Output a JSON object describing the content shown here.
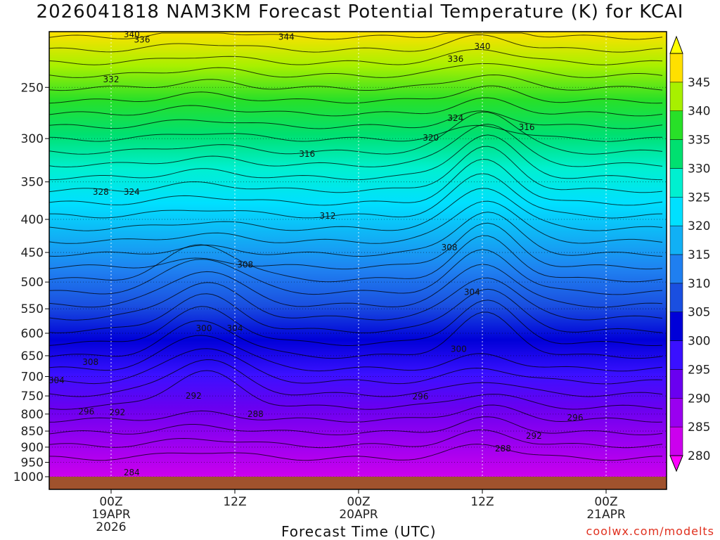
{
  "title": "2026041818 NAM3KM Forecast Potential Temperature (K) for KCAI",
  "credit": "coolwx.com/modelts",
  "chart_data": {
    "type": "heatmap",
    "title": "2026041818 NAM3KM Forecast Potential Temperature (K) for KCAI",
    "xlabel": "Forecast Time (UTC)",
    "ylabel": "",
    "y_scale": "log-pressure",
    "ylim": [
      1000,
      200
    ],
    "y_ticks": [
      250,
      300,
      350,
      400,
      450,
      500,
      550,
      600,
      650,
      700,
      750,
      800,
      850,
      900,
      950,
      1000
    ],
    "x_ticks": [
      {
        "label": "00Z",
        "sub1": "19APR",
        "sub2": "2026"
      },
      {
        "label": "12Z",
        "sub1": "",
        "sub2": ""
      },
      {
        "label": "00Z",
        "sub1": "20APR",
        "sub2": ""
      },
      {
        "label": "12Z",
        "sub1": "",
        "sub2": ""
      },
      {
        "label": "00Z",
        "sub1": "21APR",
        "sub2": ""
      }
    ],
    "colorbar": {
      "levels": [
        280,
        285,
        290,
        295,
        300,
        305,
        310,
        315,
        320,
        325,
        330,
        335,
        340,
        345
      ],
      "colors": [
        "#cc00ee",
        "#9a00f0",
        "#6a00f0",
        "#3a10ff",
        "#0000d8",
        "#1a4fe0",
        "#1f7ff0",
        "#11b0f5",
        "#00e0ff",
        "#00f0d0",
        "#00e070",
        "#28e028",
        "#a8f000",
        "#ffe000"
      ]
    },
    "contour_labels": [
      {
        "value": 284,
        "time": 2,
        "p": 985
      },
      {
        "value": 288,
        "time": 14,
        "p": 800
      },
      {
        "value": 288,
        "time": 38,
        "p": 905
      },
      {
        "value": 292,
        "time": 0.6,
        "p": 795
      },
      {
        "value": 292,
        "time": 8,
        "p": 750
      },
      {
        "value": 292,
        "time": 41,
        "p": 865
      },
      {
        "value": 296,
        "time": -2.4,
        "p": 793
      },
      {
        "value": 296,
        "time": 30,
        "p": 752
      },
      {
        "value": 296,
        "time": 45,
        "p": 810
      },
      {
        "value": 300,
        "time": 9,
        "p": 590
      },
      {
        "value": 300,
        "time": 33.7,
        "p": 635
      },
      {
        "value": 304,
        "time": 12,
        "p": 590
      },
      {
        "value": 304,
        "time": 35,
        "p": 518
      },
      {
        "value": 304,
        "time": -5.3,
        "p": 710
      },
      {
        "value": 308,
        "time": -2,
        "p": 665
      },
      {
        "value": 308,
        "time": 13,
        "p": 470
      },
      {
        "value": 308,
        "time": 32.8,
        "p": 442
      },
      {
        "value": 312,
        "time": 21,
        "p": 395
      },
      {
        "value": 316,
        "time": 19,
        "p": 317
      },
      {
        "value": 316,
        "time": 40.3,
        "p": 288
      },
      {
        "value": 320,
        "time": 31,
        "p": 299
      },
      {
        "value": 324,
        "time": 33.4,
        "p": 279
      },
      {
        "value": 324,
        "time": 2,
        "p": 363
      },
      {
        "value": 328,
        "time": -1,
        "p": 363
      },
      {
        "value": 332,
        "time": 0,
        "p": 243
      },
      {
        "value": 336,
        "time": 3,
        "p": 211
      },
      {
        "value": 336,
        "time": 33.4,
        "p": 226
      },
      {
        "value": 340,
        "time": 2,
        "p": 207
      },
      {
        "value": 340,
        "time": 36,
        "p": 216
      },
      {
        "value": 344,
        "time": 17,
        "p": 209
      }
    ]
  }
}
